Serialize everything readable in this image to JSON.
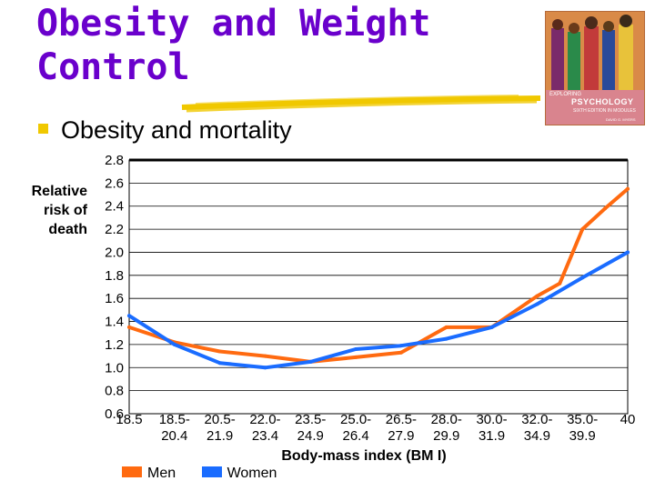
{
  "slide": {
    "title_line1": "Obesity and Weight",
    "title_line2": "Control",
    "bullet": "Obesity and mortality"
  },
  "book_cover": {
    "series": "EXPLORING",
    "title": "PSYCHOLOGY",
    "edition": "SIXTH EDITION IN MODULES",
    "author": "DAVID G. MYERS"
  },
  "colors": {
    "title": "#6a00cc",
    "bullet": "#f0c800",
    "underline": "#f0c800",
    "men": "#ff6a10",
    "women": "#1a6cff"
  },
  "chart_data": {
    "type": "line",
    "ylabel_lines": [
      "Relative",
      "risk of",
      "death"
    ],
    "xlabel": "Body-mass index (BM I)",
    "ylim": [
      0.6,
      2.8
    ],
    "yticks": [
      "2.8",
      "2.6",
      "2.4",
      "2.2",
      "2.0",
      "1.8",
      "1.6",
      "1.4",
      "1.2",
      "1.0",
      "0.8",
      "0.6"
    ],
    "grid": true,
    "legend_position": "bottom-left",
    "categories": [
      [
        "18.5"
      ],
      [
        "18.5-",
        "20.4"
      ],
      [
        "20.5-",
        "21.9"
      ],
      [
        "22.0-",
        "23.4"
      ],
      [
        "23.5-",
        "24.9"
      ],
      [
        "25.0-",
        "26.4"
      ],
      [
        "26.5-",
        "27.9"
      ],
      [
        "28.0-",
        "29.9"
      ],
      [
        "30.0-",
        "31.9"
      ],
      [
        "32.0-",
        "34.9"
      ],
      [
        "35.0-",
        "39.9"
      ],
      [
        "40"
      ]
    ],
    "series": [
      {
        "name": "Men",
        "color": "#ff6a10",
        "x": [
          0,
          1,
          2,
          3,
          4,
          5,
          6,
          7,
          8,
          9,
          9.5,
          10,
          10.5,
          11
        ],
        "values": [
          1.35,
          1.22,
          1.14,
          1.1,
          1.05,
          1.09,
          1.13,
          1.35,
          1.35,
          1.62,
          1.73,
          2.2,
          2.38,
          2.55
        ]
      },
      {
        "name": "Women",
        "color": "#1a6cff",
        "x": [
          0,
          1,
          2,
          3,
          4,
          5,
          6,
          7,
          8,
          9,
          10,
          11
        ],
        "values": [
          1.45,
          1.2,
          1.04,
          1.0,
          1.05,
          1.16,
          1.19,
          1.25,
          1.35,
          1.55,
          1.78,
          2.0
        ]
      }
    ]
  }
}
